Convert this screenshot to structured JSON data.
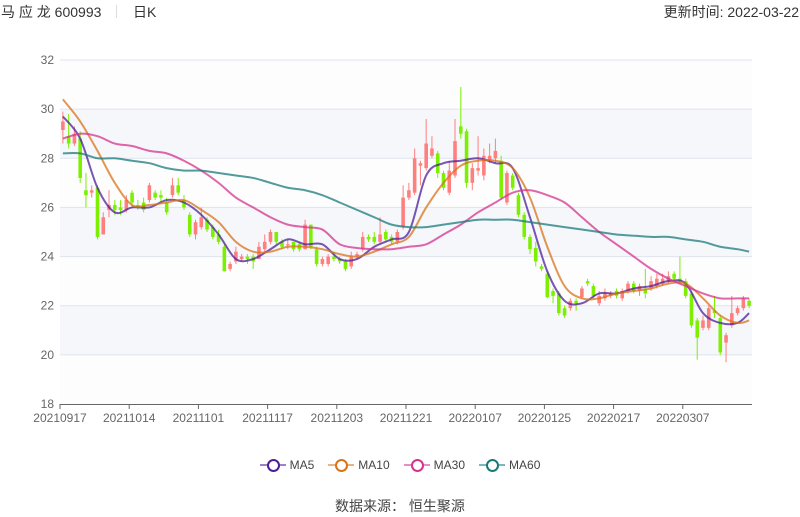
{
  "header": {
    "stock_name": "马 应 龙 600993",
    "period": "日K",
    "update_label": "更新时间: 2022-03-22"
  },
  "footer": {
    "source": "数据来源：  恒生聚源"
  },
  "colors": {
    "up": "#ff7f7f",
    "down": "#7cf000",
    "MA5": "#4b1e99",
    "MA10": "#d9731a",
    "MA30": "#d6338f",
    "MA60": "#1a7a7a"
  },
  "chart_data": {
    "type": "candlestick",
    "ylim": [
      18,
      32
    ],
    "yticks": [
      "18",
      "20",
      "22",
      "24",
      "26",
      "28",
      "30",
      "32"
    ],
    "xtick_labels": [
      "20210917",
      "20211014",
      "20211101",
      "20211117",
      "20211203",
      "20211221",
      "20220107",
      "20220125",
      "20220217",
      "20220307"
    ],
    "xtick_day_index": [
      0,
      12,
      24,
      36,
      48,
      60,
      72,
      84,
      96,
      108
    ],
    "grid": true,
    "legend_placement": "bottom",
    "candle_format": [
      "open",
      "close",
      "low",
      "high"
    ],
    "candles": [
      [
        29.15,
        29.5,
        28.6,
        29.9
      ],
      [
        28.9,
        28.6,
        28.4,
        29.8
      ],
      [
        28.6,
        29.0,
        28.5,
        29.3
      ],
      [
        28.8,
        27.2,
        27.0,
        29.1
      ],
      [
        26.7,
        26.5,
        26.0,
        27.4
      ],
      [
        26.6,
        26.7,
        26.4,
        26.9
      ],
      [
        26.8,
        24.8,
        24.7,
        26.9
      ],
      [
        24.9,
        25.6,
        24.9,
        25.8
      ],
      [
        25.9,
        26.1,
        25.6,
        26.7
      ],
      [
        26.1,
        25.9,
        25.7,
        26.3
      ],
      [
        26.0,
        25.9,
        25.7,
        26.3
      ],
      [
        25.9,
        26.3,
        25.8,
        26.5
      ],
      [
        26.6,
        26.2,
        26.0,
        26.7
      ],
      [
        26.1,
        26.0,
        25.9,
        26.3
      ],
      [
        26.2,
        25.9,
        25.8,
        26.4
      ],
      [
        26.3,
        26.9,
        26.2,
        27.0
      ],
      [
        26.6,
        26.4,
        26.3,
        26.7
      ],
      [
        26.5,
        26.4,
        26.2,
        26.7
      ],
      [
        26.2,
        25.8,
        25.7,
        26.4
      ],
      [
        26.5,
        26.9,
        26.4,
        27.2
      ],
      [
        26.9,
        26.6,
        26.5,
        27.2
      ],
      [
        26.3,
        26.0,
        25.9,
        26.5
      ],
      [
        25.7,
        24.9,
        24.8,
        25.8
      ],
      [
        24.9,
        25.4,
        24.7,
        25.5
      ],
      [
        25.2,
        25.6,
        25.1,
        26.0
      ],
      [
        25.5,
        25.1,
        25.0,
        25.6
      ],
      [
        25.2,
        24.8,
        24.7,
        25.3
      ],
      [
        24.9,
        24.6,
        24.5,
        25.1
      ],
      [
        24.4,
        23.4,
        23.4,
        24.5
      ],
      [
        23.5,
        23.7,
        23.4,
        23.8
      ],
      [
        23.8,
        24.2,
        23.7,
        24.4
      ],
      [
        23.9,
        24.0,
        23.8,
        24.1
      ],
      [
        24.0,
        23.9,
        23.7,
        24.1
      ],
      [
        24.0,
        23.8,
        23.5,
        24.1
      ],
      [
        23.9,
        24.4,
        23.9,
        24.6
      ],
      [
        24.3,
        24.6,
        24.2,
        24.9
      ],
      [
        24.6,
        25.0,
        24.5,
        25.1
      ],
      [
        25.0,
        24.6,
        24.5,
        25.0
      ],
      [
        24.6,
        24.4,
        24.3,
        24.7
      ],
      [
        24.5,
        24.5,
        24.3,
        24.7
      ],
      [
        24.6,
        24.3,
        24.2,
        24.6
      ],
      [
        24.5,
        24.3,
        24.2,
        24.6
      ],
      [
        24.3,
        25.3,
        24.3,
        25.5
      ],
      [
        25.3,
        24.4,
        24.3,
        25.3
      ],
      [
        24.3,
        23.7,
        23.6,
        24.4
      ],
      [
        23.7,
        23.9,
        23.6,
        24.0
      ],
      [
        23.7,
        24.0,
        23.6,
        24.1
      ],
      [
        24.0,
        23.9,
        23.8,
        24.2
      ],
      [
        23.9,
        23.8,
        23.7,
        24.0
      ],
      [
        23.8,
        23.5,
        23.4,
        23.9
      ],
      [
        23.6,
        24.0,
        23.5,
        24.2
      ],
      [
        24.0,
        24.1,
        23.9,
        24.2
      ],
      [
        24.3,
        24.8,
        24.2,
        25.0
      ],
      [
        24.8,
        24.7,
        24.6,
        24.9
      ],
      [
        24.8,
        24.6,
        24.5,
        25.0
      ],
      [
        24.6,
        24.9,
        24.5,
        25.6
      ],
      [
        25.0,
        24.7,
        24.6,
        25.1
      ],
      [
        24.8,
        24.6,
        24.5,
        24.9
      ],
      [
        24.6,
        25.0,
        24.5,
        25.1
      ],
      [
        25.2,
        26.4,
        25.1,
        26.9
      ],
      [
        26.4,
        26.7,
        26.3,
        27.0
      ],
      [
        26.6,
        28.0,
        26.5,
        28.4
      ],
      [
        27.7,
        27.8,
        26.9,
        27.9
      ],
      [
        27.6,
        28.6,
        27.5,
        29.6
      ],
      [
        28.1,
        28.4,
        28.0,
        28.9
      ],
      [
        28.2,
        27.4,
        27.2,
        28.3
      ],
      [
        27.4,
        26.8,
        26.7,
        27.5
      ],
      [
        26.6,
        27.5,
        26.5,
        27.9
      ],
      [
        27.3,
        28.7,
        27.2,
        29.6
      ],
      [
        29.3,
        29.0,
        28.8,
        30.9
      ],
      [
        29.1,
        27.0,
        26.8,
        29.2
      ],
      [
        27.0,
        27.6,
        26.7,
        27.8
      ],
      [
        27.5,
        27.6,
        27.3,
        28.9
      ],
      [
        27.3,
        28.1,
        27.1,
        28.4
      ],
      [
        27.9,
        28.1,
        27.8,
        28.6
      ],
      [
        28.0,
        28.3,
        27.8,
        28.8
      ],
      [
        27.9,
        26.4,
        26.3,
        28.1
      ],
      [
        26.2,
        27.4,
        26.1,
        27.5
      ],
      [
        27.3,
        26.8,
        26.7,
        27.4
      ],
      [
        26.5,
        25.7,
        25.6,
        26.6
      ],
      [
        25.7,
        24.8,
        24.7,
        25.8
      ],
      [
        24.8,
        24.3,
        24.1,
        24.9
      ],
      [
        24.35,
        23.8,
        23.6,
        24.6
      ],
      [
        23.6,
        23.5,
        23.4,
        23.7
      ],
      [
        23.3,
        22.35,
        22.3,
        23.4
      ],
      [
        22.6,
        22.4,
        22.1,
        22.7
      ],
      [
        22.5,
        21.7,
        21.6,
        22.6
      ],
      [
        21.9,
        21.6,
        21.5,
        22.0
      ],
      [
        21.9,
        22.2,
        21.8,
        22.3
      ],
      [
        22.2,
        22.1,
        21.8,
        22.3
      ],
      [
        22.35,
        22.7,
        22.3,
        22.8
      ],
      [
        23.0,
        22.9,
        22.8,
        23.1
      ],
      [
        22.8,
        22.4,
        22.3,
        22.9
      ],
      [
        22.1,
        22.4,
        22.0,
        22.6
      ],
      [
        22.3,
        22.5,
        22.2,
        22.7
      ],
      [
        22.4,
        22.5,
        22.3,
        22.6
      ],
      [
        22.6,
        22.4,
        22.3,
        22.7
      ],
      [
        22.3,
        22.6,
        22.2,
        22.7
      ],
      [
        22.6,
        22.9,
        22.5,
        23.0
      ],
      [
        22.9,
        22.6,
        22.5,
        23.0
      ],
      [
        22.6,
        22.8,
        22.4,
        22.9
      ],
      [
        22.7,
        22.5,
        22.3,
        23.5
      ],
      [
        22.7,
        23.0,
        22.6,
        23.2
      ],
      [
        22.8,
        23.1,
        22.7,
        23.3
      ],
      [
        22.9,
        23.1,
        22.8,
        23.3
      ],
      [
        23.0,
        23.2,
        22.9,
        23.4
      ],
      [
        23.3,
        23.1,
        23.0,
        23.4
      ],
      [
        23.1,
        23.0,
        22.9,
        24.0
      ],
      [
        23.0,
        22.4,
        22.3,
        23.1
      ],
      [
        22.5,
        21.2,
        21.1,
        22.6
      ],
      [
        21.4,
        20.7,
        19.8,
        21.5
      ],
      [
        21.1,
        21.4,
        21.0,
        21.6
      ],
      [
        21.1,
        21.9,
        21.0,
        22.0
      ],
      [
        21.8,
        21.7,
        21.5,
        22.4
      ],
      [
        21.5,
        20.1,
        20.0,
        21.6
      ],
      [
        20.5,
        20.8,
        19.7,
        20.9
      ],
      [
        21.2,
        21.7,
        21.1,
        22.4
      ],
      [
        21.7,
        21.9,
        21.6,
        22.0
      ],
      [
        21.9,
        22.3,
        21.8,
        22.4
      ],
      [
        22.2,
        22.0,
        21.9,
        22.3
      ]
    ],
    "ma_sample_day_index": [
      0,
      3,
      6,
      9,
      12,
      15,
      18,
      21,
      24,
      27,
      30,
      33,
      36,
      39,
      42,
      45,
      48,
      51,
      54,
      57,
      60,
      63,
      66,
      69,
      72,
      75,
      78,
      81,
      84,
      87,
      90,
      93,
      96,
      99,
      102,
      105,
      108,
      111,
      114,
      117,
      119
    ],
    "series": [
      {
        "name": "MA5",
        "values": [
          29.7,
          28.8,
          26.8,
          25.8,
          26.0,
          26.0,
          26.3,
          26.2,
          25.7,
          24.9,
          23.9,
          23.9,
          24.3,
          24.7,
          24.5,
          24.5,
          23.9,
          23.9,
          24.4,
          24.7,
          25.0,
          27.3,
          27.8,
          27.9,
          28.0,
          27.8,
          27.6,
          25.6,
          23.4,
          22.2,
          22.1,
          22.5,
          22.5,
          22.7,
          22.8,
          23.0,
          22.9,
          21.7,
          21.3,
          21.3,
          21.7
        ]
      },
      {
        "name": "MA10",
        "values": [
          30.4,
          29.5,
          28.3,
          27.0,
          26.1,
          26.1,
          26.2,
          26.3,
          25.9,
          25.4,
          24.6,
          24.2,
          24.2,
          24.4,
          24.4,
          24.3,
          24.1,
          24.0,
          24.2,
          24.5,
          24.8,
          26.0,
          27.0,
          27.7,
          27.9,
          27.9,
          27.6,
          26.4,
          24.4,
          22.8,
          22.3,
          22.3,
          22.5,
          22.6,
          22.7,
          22.9,
          22.9,
          22.3,
          21.6,
          21.3,
          21.4
        ]
      },
      {
        "name": "MA30",
        "values": [
          28.8,
          29.0,
          28.9,
          28.6,
          28.5,
          28.3,
          28.2,
          27.9,
          27.5,
          27.0,
          26.4,
          26.0,
          25.6,
          25.3,
          25.2,
          25.1,
          24.5,
          24.35,
          24.3,
          24.3,
          24.4,
          24.5,
          24.9,
          25.3,
          25.8,
          26.2,
          26.6,
          26.7,
          26.5,
          26.2,
          25.6,
          25.0,
          24.5,
          24.0,
          23.5,
          23.1,
          22.8,
          22.5,
          22.3,
          22.3,
          22.3
        ]
      },
      {
        "name": "MA60",
        "values": [
          28.2,
          28.2,
          28.0,
          28.0,
          27.9,
          27.8,
          27.6,
          27.5,
          27.5,
          27.4,
          27.3,
          27.2,
          27.0,
          26.8,
          26.7,
          26.5,
          26.2,
          25.9,
          25.6,
          25.3,
          25.2,
          25.2,
          25.3,
          25.4,
          25.5,
          25.5,
          25.5,
          25.4,
          25.3,
          25.2,
          25.1,
          25.0,
          24.9,
          24.85,
          24.8,
          24.8,
          24.7,
          24.6,
          24.4,
          24.3,
          24.2
        ]
      }
    ]
  }
}
